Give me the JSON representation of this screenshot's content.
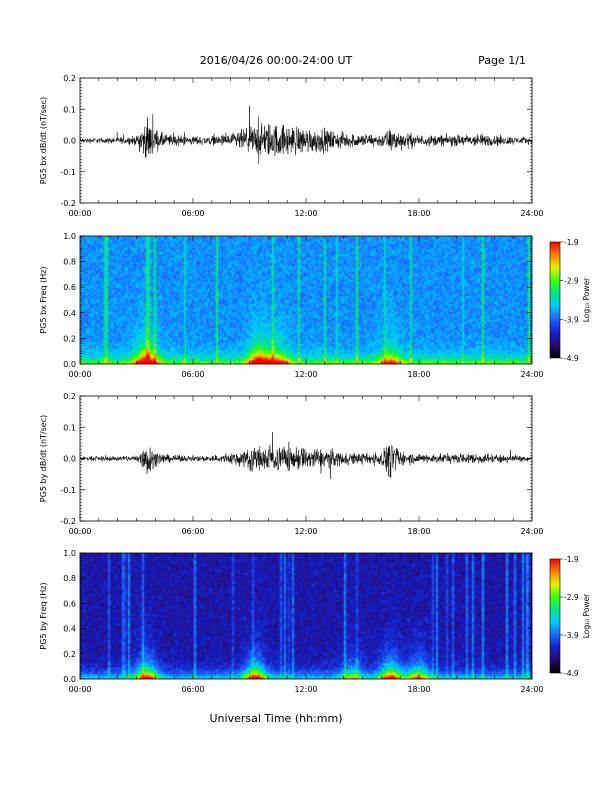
{
  "header": {
    "title": "2016/04/26  00:00-24:00 UT",
    "page": "Page 1/1"
  },
  "xlabel": "Universal Time (hh:mm)",
  "colors": {
    "trace": "#000000",
    "colormap": [
      "#000000",
      "#2a0a6e",
      "#1520c8",
      "#1e64ff",
      "#00c8ff",
      "#00e68c",
      "#3cff00",
      "#e6f000",
      "#ff8000",
      "#ff0000"
    ]
  },
  "chart_data": [
    {
      "type": "line",
      "name": "bx-waveform",
      "ylabel": "PG5 bx dB/dt (nT/sec)",
      "xlim": [
        0,
        24
      ],
      "ylim": [
        -0.2,
        0.2
      ],
      "xticks": [
        "00:00",
        "06:00",
        "12:00",
        "18:00",
        "24:00"
      ],
      "yticks": [
        "-0.2",
        "-0.1",
        "0.0",
        "0.1",
        "0.2"
      ],
      "grid": false,
      "amplitude_envelope": {
        "hours": [
          0,
          1,
          2,
          3,
          3.3,
          3.7,
          4,
          4.5,
          5,
          6,
          7,
          8,
          9,
          9.5,
          10,
          11,
          12,
          13,
          14,
          15,
          16,
          16.5,
          17,
          18,
          19,
          20,
          21,
          22,
          23,
          24
        ],
        "amplitude": [
          0.012,
          0.012,
          0.014,
          0.02,
          0.07,
          0.09,
          0.05,
          0.03,
          0.025,
          0.02,
          0.02,
          0.03,
          0.06,
          0.08,
          0.08,
          0.07,
          0.06,
          0.05,
          0.035,
          0.03,
          0.03,
          0.055,
          0.04,
          0.025,
          0.025,
          0.025,
          0.03,
          0.025,
          0.018,
          0.015
        ]
      }
    },
    {
      "type": "heatmap",
      "name": "bx-spectrogram",
      "ylabel": "PG5 bx Freq (Hz)",
      "xlim": [
        0,
        24
      ],
      "ylim": [
        0,
        1
      ],
      "xticks": [
        "00:00",
        "06:00",
        "12:00",
        "18:00",
        "24:00"
      ],
      "yticks": [
        "0.0",
        "0.2",
        "0.4",
        "0.6",
        "0.8",
        "1.0"
      ],
      "colorbar": {
        "label": "Log₁₀ Power",
        "ticks": [
          "-1.9",
          "-2.9",
          "-3.9",
          "-4.9"
        ],
        "range": [
          -4.9,
          -1.9
        ]
      },
      "background_level": -3.75,
      "low_freq_features": [
        {
          "hour": 3.5,
          "strength": 1.0
        },
        {
          "hour": 9.5,
          "strength": 1.0
        },
        {
          "hour": 10.5,
          "strength": 0.7
        },
        {
          "hour": 16.5,
          "strength": 0.6
        }
      ]
    },
    {
      "type": "line",
      "name": "by-waveform",
      "ylabel": "PG5 by dB/dt (nT/sec)",
      "xlim": [
        0,
        24
      ],
      "ylim": [
        -0.2,
        0.2
      ],
      "xticks": [
        "00:00",
        "06:00",
        "12:00",
        "18:00",
        "24:00"
      ],
      "yticks": [
        "-0.2",
        "-0.1",
        "0.0",
        "0.1",
        "0.2"
      ],
      "grid": false,
      "amplitude_envelope": {
        "hours": [
          0,
          1,
          2,
          3,
          3.3,
          3.6,
          4,
          4.5,
          5,
          6,
          7,
          8,
          9,
          9.5,
          10,
          11,
          12,
          13,
          14,
          15,
          16,
          16.5,
          17,
          18,
          19,
          20,
          21,
          22,
          23,
          24
        ],
        "amplitude": [
          0.01,
          0.01,
          0.012,
          0.015,
          0.06,
          0.08,
          0.03,
          0.02,
          0.015,
          0.012,
          0.015,
          0.025,
          0.05,
          0.06,
          0.06,
          0.06,
          0.05,
          0.045,
          0.03,
          0.025,
          0.03,
          0.09,
          0.035,
          0.02,
          0.022,
          0.02,
          0.025,
          0.02,
          0.015,
          0.012
        ]
      }
    },
    {
      "type": "heatmap",
      "name": "by-spectrogram",
      "ylabel": "PG5 by Freq (Hz)",
      "xlim": [
        0,
        24
      ],
      "ylim": [
        0,
        1
      ],
      "xticks": [
        "00:00",
        "06:00",
        "12:00",
        "18:00",
        "24:00"
      ],
      "yticks": [
        "0.0",
        "0.2",
        "0.4",
        "0.6",
        "0.8",
        "1.0"
      ],
      "colorbar": {
        "label": "Log₁₀ Power",
        "ticks": [
          "-1.9",
          "-2.9",
          "-3.9",
          "-4.9"
        ],
        "range": [
          -4.9,
          -1.9
        ]
      },
      "background_level": -4.35,
      "low_freq_features": [
        {
          "hour": 3.5,
          "strength": 1.0
        },
        {
          "hour": 9.3,
          "strength": 1.0
        },
        {
          "hour": 14.5,
          "strength": 0.6
        },
        {
          "hour": 16.5,
          "strength": 1.0
        },
        {
          "hour": 18.0,
          "strength": 0.8
        }
      ]
    }
  ]
}
